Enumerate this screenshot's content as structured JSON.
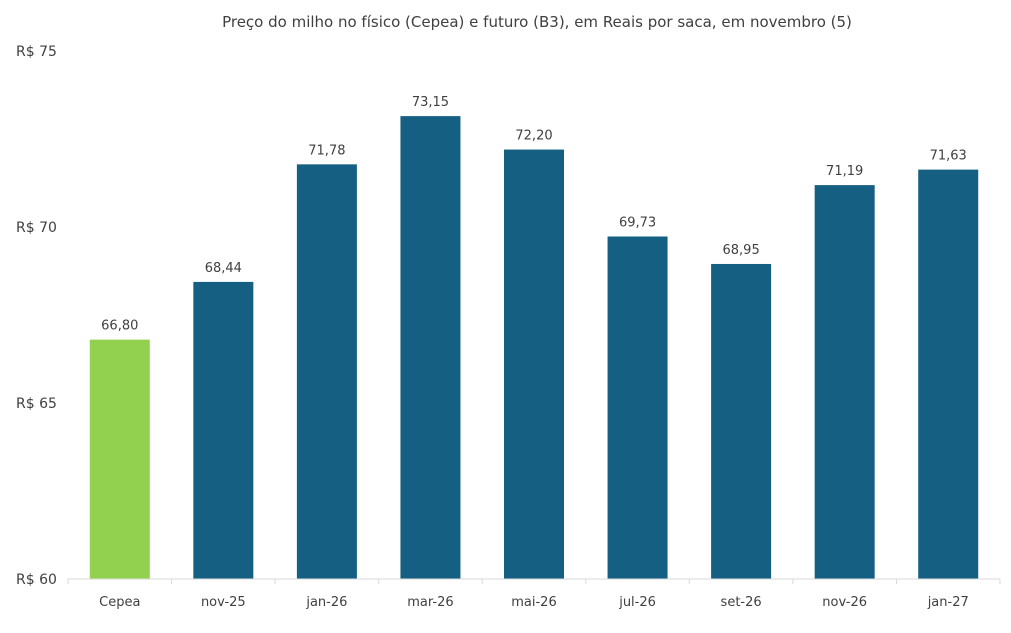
{
  "chart_data": {
    "type": "bar",
    "title": "Preço do milho no físico (Cepea) e futuro (B3), em Reais por saca, em novembro (5)",
    "categories": [
      "Cepea",
      "nov-25",
      "jan-26",
      "mar-26",
      "mai-26",
      "jul-26",
      "set-26",
      "nov-26",
      "jan-27"
    ],
    "values": [
      66.8,
      68.44,
      71.78,
      73.15,
      72.2,
      69.73,
      68.95,
      71.19,
      71.63
    ],
    "data_labels": [
      "66,80",
      "68,44",
      "71,78",
      "73,15",
      "72,20",
      "69,73",
      "68,95",
      "71,19",
      "71,63"
    ],
    "bar_colors": [
      "#92D050",
      "#155F82",
      "#155F82",
      "#155F82",
      "#155F82",
      "#155F82",
      "#155F82",
      "#155F82",
      "#155F82"
    ],
    "ylim": [
      60,
      75
    ],
    "yticks": [
      60,
      65,
      70,
      75
    ],
    "ytick_labels": [
      "R$ 60",
      "R$ 65",
      "R$ 70",
      "R$ 75"
    ],
    "xlabel": "",
    "ylabel": "",
    "grid": false,
    "legend": "none"
  }
}
